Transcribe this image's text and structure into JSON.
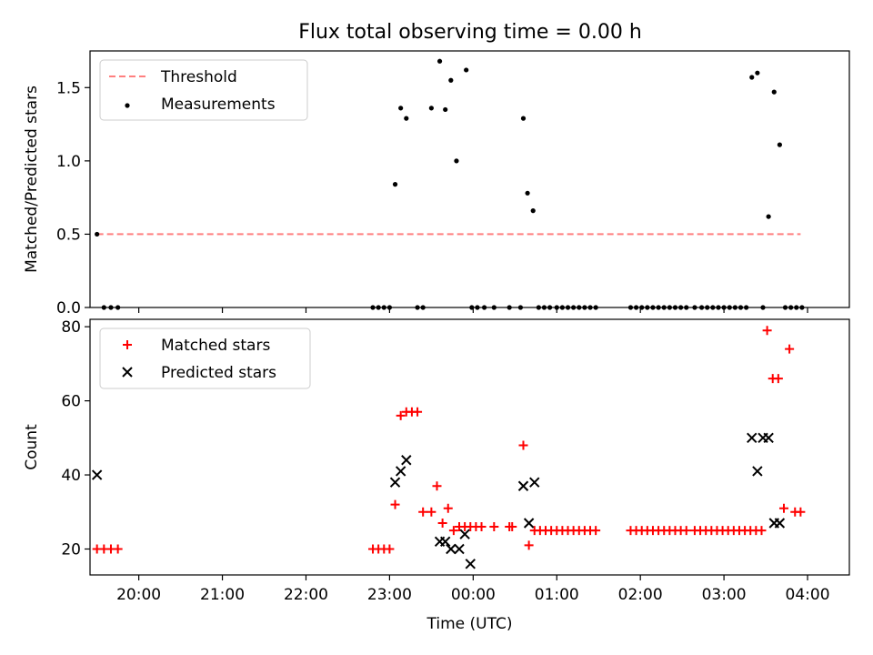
{
  "chart_data": [
    {
      "type": "scatter",
      "title": "Flux total observing time = 0.00 h",
      "xlabel": "",
      "ylabel": "Matched/Predicted stars",
      "xlim": [
        "19:25",
        "04:30"
      ],
      "ylim": [
        0,
        1.75
      ],
      "x_ticks": [
        "20:00",
        "21:00",
        "22:00",
        "23:00",
        "00:00",
        "01:00",
        "02:00",
        "03:00",
        "04:00"
      ],
      "x_tick_labels_shown": false,
      "y_ticks": [
        "0.0",
        "0.5",
        "1.0",
        "1.5"
      ],
      "legend_position": "top-left",
      "series": [
        {
          "name": "Threshold",
          "style": "dashed-line",
          "color": "#ff7f7f",
          "x": [
            "19:30",
            "03:55"
          ],
          "y": [
            0.5,
            0.5
          ]
        },
        {
          "name": "Measurements",
          "style": "dot",
          "color": "#000000",
          "x": [
            "19:30",
            "19:35",
            "19:40",
            "19:45",
            "22:48",
            "22:52",
            "22:56",
            "23:00",
            "23:04",
            "23:08",
            "23:12",
            "23:20",
            "23:24",
            "23:30",
            "23:36",
            "23:40",
            "23:44",
            "23:48",
            "23:55",
            "23:59",
            "00:03",
            "00:08",
            "00:15",
            "00:26",
            "00:34",
            "00:36",
            "00:39",
            "00:43",
            "00:47",
            "00:51",
            "00:55",
            "01:00",
            "01:04",
            "01:08",
            "01:12",
            "01:16",
            "01:20",
            "01:24",
            "01:28",
            "01:53",
            "01:57",
            "02:01",
            "02:05",
            "02:09",
            "02:13",
            "02:17",
            "02:21",
            "02:25",
            "02:29",
            "02:33",
            "02:39",
            "02:44",
            "02:48",
            "02:52",
            "02:56",
            "03:00",
            "03:04",
            "03:08",
            "03:12",
            "03:16",
            "03:20",
            "03:24",
            "03:28",
            "03:32",
            "03:36",
            "03:40",
            "03:44",
            "03:48",
            "03:52",
            "03:56"
          ],
          "y": [
            0.5,
            0,
            0,
            0,
            0,
            0,
            0,
            0,
            0.84,
            1.36,
            1.29,
            0,
            0,
            1.36,
            1.68,
            1.35,
            1.55,
            1.0,
            1.62,
            0,
            0,
            0,
            0,
            0,
            0,
            1.29,
            0.78,
            0.66,
            0,
            0,
            0,
            0,
            0,
            0,
            0,
            0,
            0,
            0,
            0,
            0,
            0,
            0,
            0,
            0,
            0,
            0,
            0,
            0,
            0,
            0,
            0,
            0,
            0,
            0,
            0,
            0,
            0,
            0,
            0,
            0,
            1.57,
            1.6,
            0,
            0.62,
            1.47,
            1.11,
            0,
            0,
            0,
            0
          ]
        }
      ]
    },
    {
      "type": "scatter",
      "title": "",
      "xlabel": "Time (UTC)",
      "ylabel": "Count",
      "xlim": [
        "19:25",
        "04:30"
      ],
      "ylim": [
        13,
        82
      ],
      "x_ticks": [
        "20:00",
        "21:00",
        "22:00",
        "23:00",
        "00:00",
        "01:00",
        "02:00",
        "03:00",
        "04:00"
      ],
      "y_ticks": [
        "20",
        "40",
        "60",
        "80"
      ],
      "legend_position": "top-left",
      "series": [
        {
          "name": "Matched stars",
          "marker": "plus",
          "color": "#ff0000",
          "x": [
            "19:30",
            "19:35",
            "19:40",
            "19:45",
            "22:48",
            "22:52",
            "22:56",
            "23:00",
            "23:04",
            "23:08",
            "23:12",
            "23:16",
            "23:20",
            "23:24",
            "23:30",
            "23:34",
            "23:38",
            "23:42",
            "23:46",
            "23:50",
            "23:54",
            "23:58",
            "00:02",
            "00:06",
            "00:15",
            "00:26",
            "00:28",
            "00:36",
            "00:40",
            "00:44",
            "00:48",
            "00:52",
            "00:56",
            "01:00",
            "01:04",
            "01:08",
            "01:12",
            "01:16",
            "01:20",
            "01:24",
            "01:28",
            "01:53",
            "01:57",
            "02:01",
            "02:05",
            "02:09",
            "02:13",
            "02:17",
            "02:21",
            "02:25",
            "02:29",
            "02:33",
            "02:39",
            "02:43",
            "02:47",
            "02:51",
            "02:55",
            "02:59",
            "03:03",
            "03:07",
            "03:11",
            "03:15",
            "03:19",
            "03:23",
            "03:27",
            "03:31",
            "03:35",
            "03:39",
            "03:43",
            "03:47",
            "03:51",
            "03:55"
          ],
          "y": [
            20,
            20,
            20,
            20,
            20,
            20,
            20,
            20,
            32,
            56,
            57,
            57,
            57,
            30,
            30,
            37,
            27,
            31,
            25,
            26,
            26,
            26,
            26,
            26,
            26,
            26,
            26,
            48,
            21,
            25,
            25,
            25,
            25,
            25,
            25,
            25,
            25,
            25,
            25,
            25,
            25,
            25,
            25,
            25,
            25,
            25,
            25,
            25,
            25,
            25,
            25,
            25,
            25,
            25,
            25,
            25,
            25,
            25,
            25,
            25,
            25,
            25,
            25,
            25,
            25,
            79,
            66,
            66,
            31,
            74,
            30,
            30
          ]
        },
        {
          "name": "Predicted stars",
          "marker": "x",
          "color": "#000000",
          "x": [
            "19:30",
            "23:04",
            "23:08",
            "23:12",
            "23:36",
            "23:40",
            "23:44",
            "23:50",
            "23:54",
            "23:58",
            "00:36",
            "00:40",
            "00:44",
            "03:20",
            "03:24",
            "03:28",
            "03:32",
            "03:36",
            "03:40"
          ],
          "y": [
            40,
            38,
            41,
            44,
            22,
            22,
            20,
            20,
            24,
            16,
            37,
            27,
            38,
            50,
            41,
            50,
            50,
            27,
            27
          ]
        }
      ]
    }
  ]
}
